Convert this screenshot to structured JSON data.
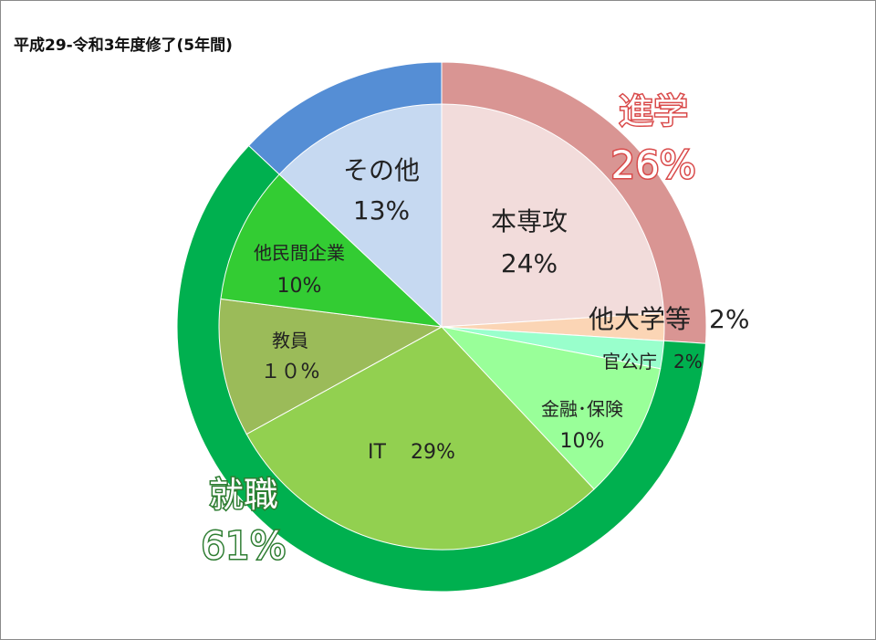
{
  "chart_data": {
    "type": "pie",
    "title": "平成29-令和3年度修了(5年間)",
    "outer_ring": [
      {
        "label": "進学",
        "value_label": "26%",
        "value": 26,
        "color": "#d99593",
        "text_style": "pink"
      },
      {
        "label": "就職",
        "value_label": "61%",
        "value": 61,
        "color": "#00b04f",
        "text_style": "green"
      },
      {
        "label": "",
        "value_label": "",
        "value": 13,
        "color": "#558ed5",
        "text_style": "none"
      }
    ],
    "inner_pie": [
      {
        "label": "本専攻",
        "value_label": "24%",
        "value": 24,
        "color": "#f2dcdb"
      },
      {
        "label": "他大学等",
        "value_label": "2%",
        "value": 2,
        "color": "#fbd5b5"
      },
      {
        "label": "官公庁",
        "value_label": "2%",
        "value": 2,
        "color": "#99ffcc"
      },
      {
        "label": "金融･保険",
        "value_label": "10%",
        "value": 10,
        "color": "#99ff99"
      },
      {
        "label": "IT",
        "value_label": "29%",
        "value": 29,
        "color": "#92d050"
      },
      {
        "label": "教員",
        "value_label": "１０%",
        "value": 10,
        "color": "#9bbb59"
      },
      {
        "label": "他民間企業",
        "value_label": "10%",
        "value": 10,
        "color": "#33cc33"
      },
      {
        "label": "その他",
        "value_label": "13%",
        "value": 13,
        "color": "#c6d9f1"
      }
    ]
  }
}
